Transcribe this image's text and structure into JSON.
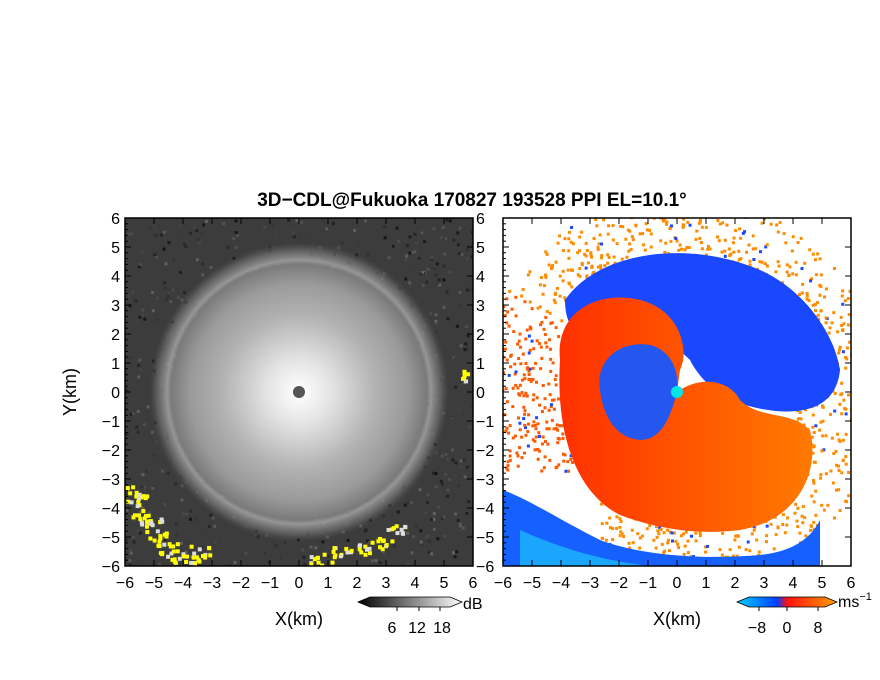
{
  "title": "3D−CDL@Fukuoka 170827 193528 PPI EL=10.1°",
  "chart_data": [
    {
      "type": "heatmap",
      "panel": "left",
      "quantity": "SNR",
      "xlabel": "X(km)",
      "ylabel": "Y(km)",
      "xlim": [
        -6,
        6
      ],
      "ylim": [
        -6,
        6
      ],
      "xticks": [
        "−6",
        "−5",
        "−4",
        "−3",
        "−2",
        "−1",
        "0",
        "1",
        "2",
        "3",
        "4",
        "5",
        "6"
      ],
      "yticks": [
        "−6",
        "−5",
        "−4",
        "−3",
        "−2",
        "−1",
        "0",
        "1",
        "2",
        "3",
        "4",
        "5",
        "6"
      ],
      "colorbar": {
        "unit": "dB",
        "ticks": [
          "6",
          "12",
          "18"
        ],
        "colors": [
          "#000000",
          "#ffffff"
        ]
      },
      "features": {
        "center_marker": {
          "x": 0,
          "y": 0
        },
        "bright_ring_radius_km": 4.3,
        "high_snr_color": "#ffff00",
        "background": "#3a3a3a"
      }
    },
    {
      "type": "heatmap",
      "panel": "right",
      "quantity": "Doppler velocity",
      "xlabel": "X(km)",
      "ylabel": "",
      "xlim": [
        -6,
        6
      ],
      "ylim": [
        -6,
        6
      ],
      "xticks": [
        "−6",
        "−5",
        "−4",
        "−3",
        "−2",
        "−1",
        "0",
        "1",
        "2",
        "3",
        "4",
        "5",
        "6"
      ],
      "yticks": [
        "−6",
        "−5",
        "−4",
        "−3",
        "−2",
        "−1",
        "0",
        "1",
        "2",
        "3",
        "4",
        "5",
        "6"
      ],
      "colorbar": {
        "unit": "ms",
        "unit_exp": "−1",
        "ticks": [
          "−8",
          "0",
          "8"
        ],
        "colors": [
          "#00c8ff",
          "#0050ff",
          "#ff2000",
          "#ff9000"
        ]
      },
      "features": {
        "center_marker": {
          "x": 0,
          "y": 0,
          "color": "#00e5e5"
        },
        "approaching_color": "#1a4dff",
        "receding_color": "#ff3300",
        "outer_color": "#ff8c00"
      }
    }
  ]
}
